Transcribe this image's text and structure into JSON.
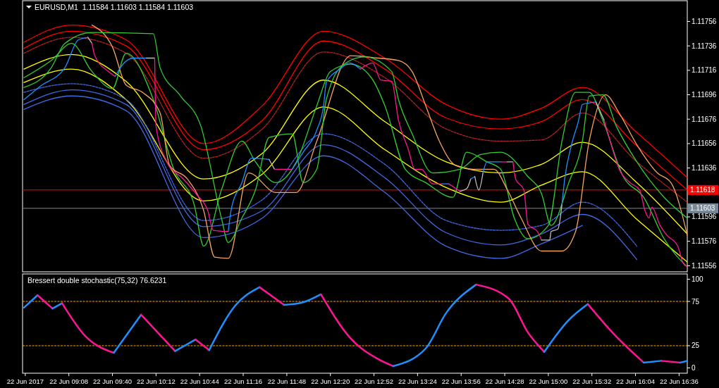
{
  "chart_data": [
    {
      "type": "line",
      "title": "EURUSD,M1  1.11584 1.11603 1.11584 1.11603",
      "xlim": [
        "2017-06-22T08:34",
        "2017-06-22T16:42"
      ],
      "ylim": [
        1.11551,
        1.11773
      ],
      "yticks": [
        1.11556,
        1.11576,
        1.11596,
        1.11636,
        1.11656,
        1.11676,
        1.11696,
        1.11716,
        1.11736,
        1.11756
      ],
      "tick_labels": "y",
      "ref_lines": [
        {
          "axis": "y",
          "value": 1.11618,
          "label": "1.11618",
          "color": "#ff0000"
        },
        {
          "axis": "y",
          "value": 1.11603,
          "label": "1.11603",
          "color": "#778899"
        }
      ],
      "x": [
        "2017-06-22T08:35",
        "2017-06-22T09:10",
        "2017-06-22T09:50",
        "2017-06-22T10:47",
        "2017-06-22T11:30",
        "2017-06-22T12:15",
        "2017-06-22T13:00",
        "2017-06-22T13:45",
        "2017-06-22T14:25",
        "2017-06-22T14:55",
        "2017-06-22T15:25",
        "2017-06-22T16:05",
        "2017-06-22T16:42"
      ],
      "series": [
        {
          "color": "#ff0000",
          "values": [
            1.11739,
            1.11753,
            1.11741,
            1.11656,
            1.11687,
            1.11748,
            1.11726,
            1.11688,
            1.11676,
            1.11685,
            1.11702,
            1.11665,
            1.11628
          ]
        },
        {
          "color": "#ff0000",
          "values": [
            1.11734,
            1.11748,
            1.11736,
            1.11651,
            1.11675,
            1.1174,
            1.11717,
            1.11677,
            1.11668,
            1.11674,
            1.11692,
            1.11654,
            1.11618
          ]
        },
        {
          "color": "#b22222",
          "line_style": "dashed",
          "values": [
            1.1173,
            1.11743,
            1.1173,
            1.11644,
            1.11668,
            1.11731,
            1.1171,
            1.11668,
            1.11658,
            1.11659,
            1.11681,
            1.11641,
            1.11608
          ]
        },
        {
          "color": "#ffff00",
          "values": [
            1.11717,
            1.11729,
            1.11707,
            1.11627,
            1.11648,
            1.11708,
            1.11674,
            1.11641,
            1.11632,
            1.11639,
            1.11657,
            1.11624,
            1.11582
          ]
        },
        {
          "color": "#ffff00",
          "values": [
            1.11706,
            1.11717,
            1.11692,
            1.11609,
            1.11631,
            1.11686,
            1.11651,
            1.1162,
            1.11608,
            1.11622,
            1.11633,
            1.11594,
            1.11559
          ]
        },
        {
          "color": "#4169e1",
          "line_style": "dashed",
          "values": [
            1.11698,
            1.11705,
            1.11692,
            1.11593,
            1.1161,
            1.11664,
            1.11639,
            1.11593,
            1.11585,
            1.11589,
            1.11608,
            1.11572,
            null
          ]
        },
        {
          "color": "#4169e1",
          "values": [
            1.11688,
            1.117,
            1.11688,
            1.11588,
            1.11601,
            1.11655,
            1.11628,
            1.11583,
            1.11573,
            1.11582,
            1.11598,
            1.11561,
            null
          ]
        },
        {
          "color": "#4169e1",
          "values": [
            1.11684,
            1.11695,
            1.11683,
            1.11579,
            1.11595,
            1.11646,
            1.11616,
            1.11572,
            1.11562,
            1.11574,
            1.11589,
            null,
            null
          ]
        },
        {
          "color": "#32cd32",
          "x": [
            "2017-06-22T08:35",
            "2017-06-22T08:55",
            "2017-06-22T09:10",
            "2017-06-22T09:25",
            "2017-06-22T09:40",
            "2017-06-22T09:50",
            "2017-06-22T10:10",
            "2017-06-22T10:25",
            "2017-06-22T10:40",
            "2017-06-22T10:47",
            "2017-06-22T11:00",
            "2017-06-22T11:15",
            "2017-06-22T11:25",
            "2017-06-22T11:40",
            "2017-06-22T11:55",
            "2017-06-22T12:10",
            "2017-06-22T12:20",
            "2017-06-22T12:35",
            "2017-06-22T12:50",
            "2017-06-22T13:00",
            "2017-06-22T13:15",
            "2017-06-22T13:30",
            "2017-06-22T13:50",
            "2017-06-22T14:00",
            "2017-06-22T14:15",
            "2017-06-22T14:25",
            "2017-06-22T14:35",
            "2017-06-22T14:45",
            "2017-06-22T15:00",
            "2017-06-22T15:10",
            "2017-06-22T15:20",
            "2017-06-22T15:30",
            "2017-06-22T15:40",
            "2017-06-22T15:55",
            "2017-06-22T16:10",
            "2017-06-22T16:25",
            "2017-06-22T16:42"
          ],
          "values": [
            1.1171,
            1.11724,
            1.11738,
            1.11715,
            1.11701,
            1.1173,
            1.11692,
            1.11635,
            1.11606,
            1.11572,
            1.11618,
            1.11658,
            1.11641,
            1.11624,
            1.11641,
            1.11687,
            1.11715,
            1.11721,
            1.1171,
            1.11687,
            1.11635,
            1.11624,
            1.11612,
            1.11649,
            1.11641,
            1.11635,
            1.11595,
            1.11578,
            1.11589,
            1.11658,
            1.11698,
            1.11698,
            1.11675,
            1.11629,
            1.11612,
            1.11578,
            1.11555
          ]
        },
        {
          "color": "#f4a460",
          "x": [
            "2017-06-22T09:25",
            "2017-06-22T09:40",
            "2017-06-22T09:50",
            "2017-06-22T10:02",
            "2017-06-22T10:15",
            "2017-06-22T10:22",
            "2017-06-22T10:35",
            "2017-06-22T10:47",
            "2017-06-22T10:55",
            "2017-06-22T11:05",
            "2017-06-22T11:20",
            "2017-06-22T11:40",
            "2017-06-22T11:55",
            "2017-06-22T12:10",
            "2017-06-22T12:35",
            "2017-06-22T12:55",
            "2017-06-22T13:10",
            "2017-06-22T13:20",
            "2017-06-22T13:30",
            "2017-06-22T13:40",
            "2017-06-22T13:52",
            "2017-06-22T14:05",
            "2017-06-22T14:20",
            "2017-06-22T14:30",
            "2017-06-22T14:40",
            "2017-06-22T14:55",
            "2017-06-22T15:10",
            "2017-06-22T15:20",
            "2017-06-22T15:30",
            "2017-06-22T15:42",
            "2017-06-22T15:52",
            "2017-06-22T16:05",
            "2017-06-22T16:20",
            "2017-06-22T16:30",
            "2017-06-22T16:42"
          ],
          "values": [
            1.11753,
            1.11735,
            1.11704,
            1.11698,
            1.11681,
            1.11638,
            1.11627,
            1.11601,
            1.11563,
            1.11562,
            1.11632,
            1.11616,
            1.11616,
            1.11658,
            1.11728,
            1.11726,
            1.11724,
            1.11715,
            1.11687,
            1.11658,
            1.11638,
            1.11635,
            1.11635,
            1.11618,
            1.11595,
            1.11568,
            1.11568,
            1.11584,
            1.11658,
            1.11696,
            1.11681,
            1.11655,
            1.11632,
            1.11624,
            1.11581
          ]
        },
        {
          "color": "#32cd32",
          "x": [
            "2017-06-22T08:35",
            "2017-06-22T08:55",
            "2017-06-22T09:05",
            "2017-06-22T09:25",
            "2017-06-22T10:10",
            "2017-06-22T10:15",
            "2017-06-22T10:30",
            "2017-06-22T10:45",
            "2017-06-22T11:00",
            "2017-06-22T11:05",
            "2017-06-22T11:15",
            "2017-06-22T11:25",
            "2017-06-22T11:35",
            "2017-06-22T11:52",
            "2017-06-22T12:00",
            "2017-06-22T12:10",
            "2017-06-22T12:17",
            "2017-06-22T12:30",
            "2017-06-22T12:45",
            "2017-06-22T13:05",
            "2017-06-22T13:10",
            "2017-06-22T13:20",
            "2017-06-22T13:35",
            "2017-06-22T13:55",
            "2017-06-22T14:10",
            "2017-06-22T14:25",
            "2017-06-22T14:45",
            "2017-06-22T14:55",
            "2017-06-22T15:02",
            "2017-06-22T15:15",
            "2017-06-22T15:25",
            "2017-06-22T15:30",
            "2017-06-22T15:40",
            "2017-06-22T15:50",
            "2017-06-22T16:05",
            "2017-06-22T16:25",
            "2017-06-22T16:42"
          ],
          "values": [
            1.11702,
            1.11718,
            1.11738,
            1.11747,
            1.11746,
            1.11718,
            1.11695,
            1.1167,
            1.11595,
            1.11575,
            1.11595,
            1.11618,
            1.11661,
            1.11664,
            1.11624,
            1.11635,
            1.11692,
            1.11721,
            1.11727,
            1.11715,
            1.11692,
            1.11664,
            1.11632,
            1.11635,
            1.11647,
            1.11649,
            1.11629,
            1.11615,
            1.11589,
            1.11624,
            1.11658,
            1.11695,
            1.11696,
            1.1167,
            1.11641,
            1.11612,
            1.11595
          ]
        },
        {
          "color": "#1e90ff",
          "x": [
            "2017-06-22T08:35",
            "2017-06-22T08:47",
            "2017-06-22T09:05",
            "2017-06-22T09:15",
            "2017-06-22T09:22"
          ],
          "values": [
            1.11692,
            1.11703,
            1.11718,
            1.11741,
            1.11743
          ]
        },
        {
          "color": "#c0c0c0",
          "x": [
            "2017-06-22T09:22",
            "2017-06-22T09:25"
          ],
          "values": [
            1.11743,
            1.11738
          ]
        },
        {
          "color": "#ff1493",
          "x": [
            "2017-06-22T09:25",
            "2017-06-22T09:27",
            "2017-06-22T09:37",
            "2017-06-22T09:42"
          ],
          "values": [
            1.11738,
            1.11728,
            1.11715,
            1.11711
          ]
        },
        {
          "color": "#1e90ff",
          "x": [
            "2017-06-22T09:42",
            "2017-06-22T09:47",
            "2017-06-22T09:55",
            "2017-06-22T10:05"
          ],
          "values": [
            1.11711,
            1.1172,
            1.11726,
            1.11726
          ]
        },
        {
          "color": "#c0c0c0",
          "x": [
            "2017-06-22T10:05",
            "2017-06-22T10:11"
          ],
          "values": [
            1.11726,
            1.11726
          ]
        },
        {
          "color": "#ff1493",
          "x": [
            "2017-06-22T10:11",
            "2017-06-22T10:12",
            "2017-06-22T10:20",
            "2017-06-22T10:32",
            "2017-06-22T10:42",
            "2017-06-22T10:50",
            "2017-06-22T10:54",
            "2017-06-22T11:05"
          ],
          "values": [
            1.11726,
            1.1167,
            1.11641,
            1.11627,
            1.11614,
            1.11601,
            1.11585,
            1.11584
          ]
        },
        {
          "color": "#1e90ff",
          "x": [
            "2017-06-22T11:05",
            "2017-06-22T11:07",
            "2017-06-22T11:15",
            "2017-06-22T11:22",
            "2017-06-22T11:35"
          ],
          "values": [
            1.11584,
            1.11601,
            1.11624,
            1.11644,
            1.11643
          ]
        },
        {
          "color": "#c0c0c0",
          "x": [
            "2017-06-22T11:35",
            "2017-06-22T11:39"
          ],
          "values": [
            1.11643,
            1.11635
          ]
        },
        {
          "color": "#ff1493",
          "x": [
            "2017-06-22T11:39",
            "2017-06-22T11:52"
          ],
          "values": [
            1.11635,
            1.11635
          ]
        },
        {
          "color": "#1e90ff",
          "x": [
            "2017-06-22T11:52",
            "2017-06-22T12:00",
            "2017-06-22T12:10",
            "2017-06-22T12:15",
            "2017-06-22T12:17",
            "2017-06-22T12:27",
            "2017-06-22T12:34",
            "2017-06-22T12:42"
          ],
          "values": [
            1.11635,
            1.11649,
            1.11667,
            1.11687,
            1.11706,
            1.11717,
            1.11722,
            1.11717
          ]
        },
        {
          "color": "#ff1493",
          "x": [
            "2017-06-22T12:42",
            "2017-06-22T12:51",
            "2017-06-22T12:57",
            "2017-06-22T13:05",
            "2017-06-22T13:10",
            "2017-06-22T13:17",
            "2017-06-22T13:22",
            "2017-06-22T13:27",
            "2017-06-22T13:35",
            "2017-06-22T13:42"
          ],
          "values": [
            1.11717,
            1.11722,
            1.11708,
            1.11707,
            1.11675,
            1.11652,
            1.11635,
            1.11635,
            1.11623,
            1.11623
          ]
        },
        {
          "color": "#1e90ff",
          "x": [
            "2017-06-22T13:42",
            "2017-06-22T13:47"
          ],
          "values": [
            1.11623,
            1.11623
          ]
        },
        {
          "color": "#ff1493",
          "x": [
            "2017-06-22T13:47",
            "2017-06-22T13:55"
          ],
          "values": [
            1.11623,
            1.11617
          ]
        },
        {
          "color": "#c0c0c0",
          "x": [
            "2017-06-22T13:55",
            "2017-06-22T14:00",
            "2017-06-22T14:03"
          ],
          "values": [
            1.11617,
            1.11619,
            1.11627
          ]
        },
        {
          "color": "#1e90ff",
          "x": [
            "2017-06-22T14:03",
            "2017-06-22T14:06"
          ],
          "values": [
            1.11627,
            1.11629
          ]
        },
        {
          "color": "#c0c0c0",
          "x": [
            "2017-06-22T14:06",
            "2017-06-22T14:09",
            "2017-06-22T14:12"
          ],
          "values": [
            1.11629,
            1.11618,
            1.11632
          ]
        },
        {
          "color": "#1e90ff",
          "x": [
            "2017-06-22T14:12",
            "2017-06-22T14:15",
            "2017-06-22T14:25"
          ],
          "values": [
            1.11632,
            1.11641,
            1.11641
          ]
        },
        {
          "color": "#ff1493",
          "x": [
            "2017-06-22T14:25",
            "2017-06-22T14:30"
          ],
          "values": [
            1.11641,
            1.11641
          ]
        },
        {
          "color": "#c0c0c0",
          "x": [
            "2017-06-22T14:30",
            "2017-06-22T14:34"
          ],
          "values": [
            1.11641,
            1.11641
          ]
        },
        {
          "color": "#ff1493",
          "x": [
            "2017-06-22T14:34",
            "2017-06-22T14:36",
            "2017-06-22T14:42",
            "2017-06-22T14:45",
            "2017-06-22T14:52",
            "2017-06-22T14:55"
          ],
          "values": [
            1.11641,
            1.11627,
            1.11618,
            1.1159,
            1.11584,
            1.11577
          ]
        },
        {
          "color": "#c0c0c0",
          "x": [
            "2017-06-22T14:55",
            "2017-06-22T15:01",
            "2017-06-22T15:02",
            "2017-06-22T15:07",
            "2017-06-22T15:10"
          ],
          "values": [
            1.11577,
            1.11577,
            1.11584,
            1.11586,
            1.11606
          ]
        },
        {
          "color": "#1e90ff",
          "x": [
            "2017-06-22T15:10",
            "2017-06-22T15:12",
            "2017-06-22T15:17",
            "2017-06-22T15:22",
            "2017-06-22T15:25",
            "2017-06-22T15:35"
          ],
          "values": [
            1.11606,
            1.11627,
            1.11655,
            1.11674,
            1.11688,
            1.1169
          ]
        },
        {
          "color": "#c0c0c0",
          "x": [
            "2017-06-22T15:35",
            "2017-06-22T15:41"
          ],
          "values": [
            1.1169,
            1.11675
          ]
        },
        {
          "color": "#ff1493",
          "x": [
            "2017-06-22T15:41",
            "2017-06-22T15:47",
            "2017-06-22T15:52",
            "2017-06-22T16:00",
            "2017-06-22T16:07",
            "2017-06-22T16:11",
            "2017-06-22T16:14",
            "2017-06-22T16:16",
            "2017-06-22T16:22",
            "2017-06-22T16:27",
            "2017-06-22T16:35",
            "2017-06-22T16:39",
            "2017-06-22T16:42"
          ],
          "values": [
            1.11675,
            1.11652,
            1.11635,
            1.11624,
            1.11618,
            1.11601,
            1.11595,
            1.11604,
            1.11589,
            1.11581,
            1.11572,
            1.11558,
            1.11555
          ]
        }
      ]
    },
    {
      "type": "line",
      "title": "Bressert double stochastic(75,32) 76.6231",
      "xlim": [
        "2017-06-22T08:34",
        "2017-06-22T16:42"
      ],
      "ylim": [
        -6,
        106
      ],
      "yticks": [
        0,
        25,
        75,
        100
      ],
      "xticks": [
        {
          "value": "2017-06-22T08:36",
          "label": "22 Jun 2017"
        },
        {
          "value": "2017-06-22T09:08",
          "label": "22 Jun 09:08"
        },
        {
          "value": "2017-06-22T09:40",
          "label": "22 Jun 09:40"
        },
        {
          "value": "2017-06-22T10:12",
          "label": "22 Jun 10:12"
        },
        {
          "value": "2017-06-22T10:44",
          "label": "22 Jun 10:44"
        },
        {
          "value": "2017-06-22T11:16",
          "label": "22 Jun 11:16"
        },
        {
          "value": "2017-06-22T11:48",
          "label": "22 Jun 11:48"
        },
        {
          "value": "2017-06-22T12:20",
          "label": "22 Jun 12:20"
        },
        {
          "value": "2017-06-22T12:52",
          "label": "22 Jun 12:52"
        },
        {
          "value": "2017-06-22T13:24",
          "label": "22 Jun 13:24"
        },
        {
          "value": "2017-06-22T13:56",
          "label": "22 Jun 13:56"
        },
        {
          "value": "2017-06-22T14:28",
          "label": "22 Jun 14:28"
        },
        {
          "value": "2017-06-22T15:00",
          "label": "22 Jun 15:00"
        },
        {
          "value": "2017-06-22T15:32",
          "label": "22 Jun 15:32"
        },
        {
          "value": "2017-06-22T16:04",
          "label": "22 Jun 16:04"
        },
        {
          "value": "2017-06-22T16:36",
          "label": "22 Jun 16:36"
        }
      ],
      "ref_lines": [
        {
          "axis": "y",
          "value": 75,
          "color": "#ffa500",
          "line_style": "dashed"
        },
        {
          "axis": "y",
          "value": 25,
          "color": "#ffa500",
          "line_style": "dashed"
        }
      ],
      "series": [
        {
          "color": "#1e90ff",
          "x": [
            "2017-06-22T08:35",
            "2017-06-22T08:45"
          ],
          "values": [
            68,
            82
          ]
        },
        {
          "color": "#ff1493",
          "x": [
            "2017-06-22T08:45",
            "2017-06-22T08:56"
          ],
          "values": [
            82,
            67
          ]
        },
        {
          "color": "#1e90ff",
          "x": [
            "2017-06-22T08:56",
            "2017-06-22T09:03"
          ],
          "values": [
            67,
            73
          ]
        },
        {
          "color": "#ff1493",
          "x": [
            "2017-06-22T09:03",
            "2017-06-22T09:20",
            "2017-06-22T09:41"
          ],
          "values": [
            73,
            36,
            17
          ]
        },
        {
          "color": "#1e90ff",
          "x": [
            "2017-06-22T09:41",
            "2017-06-22T10:01"
          ],
          "values": [
            17,
            60
          ]
        },
        {
          "color": "#ff1493",
          "x": [
            "2017-06-22T10:01",
            "2017-06-22T10:26"
          ],
          "values": [
            60,
            19
          ]
        },
        {
          "color": "#1e90ff",
          "x": [
            "2017-06-22T10:26",
            "2017-06-22T10:41"
          ],
          "values": [
            19,
            32
          ]
        },
        {
          "color": "#ff1493",
          "x": [
            "2017-06-22T10:41",
            "2017-06-22T10:51"
          ],
          "values": [
            32,
            20
          ]
        },
        {
          "color": "#1e90ff",
          "x": [
            "2017-06-22T10:51",
            "2017-06-22T11:10",
            "2017-06-22T11:28"
          ],
          "values": [
            20,
            70,
            91
          ]
        },
        {
          "color": "#ff1493",
          "x": [
            "2017-06-22T11:28",
            "2017-06-22T11:46"
          ],
          "values": [
            91,
            71
          ]
        },
        {
          "color": "#1e90ff",
          "x": [
            "2017-06-22T11:46",
            "2017-06-22T12:00",
            "2017-06-22T12:13"
          ],
          "values": [
            71,
            74,
            83
          ]
        },
        {
          "color": "#ff1493",
          "x": [
            "2017-06-22T12:13",
            "2017-06-22T12:35",
            "2017-06-22T12:55",
            "2017-06-22T13:06"
          ],
          "values": [
            83,
            33,
            10,
            2
          ]
        },
        {
          "color": "#1e90ff",
          "x": [
            "2017-06-22T13:06",
            "2017-06-22T13:30",
            "2017-06-22T13:45",
            "2017-06-22T14:07"
          ],
          "values": [
            2,
            22,
            62,
            94
          ]
        },
        {
          "color": "#ff1493",
          "x": [
            "2017-06-22T14:07",
            "2017-06-22T14:31",
            "2017-06-22T14:45",
            "2017-06-22T14:57"
          ],
          "values": [
            94,
            78,
            40,
            18
          ]
        },
        {
          "color": "#1e90ff",
          "x": [
            "2017-06-22T14:57",
            "2017-06-22T15:15",
            "2017-06-22T15:29"
          ],
          "values": [
            18,
            54,
            72
          ]
        },
        {
          "color": "#ff1493",
          "x": [
            "2017-06-22T15:29",
            "2017-06-22T15:47",
            "2017-06-22T16:10"
          ],
          "values": [
            72,
            40,
            6
          ]
        },
        {
          "color": "#1e90ff",
          "x": [
            "2017-06-22T16:10",
            "2017-06-22T16:23"
          ],
          "values": [
            6,
            8
          ]
        },
        {
          "color": "#ff1493",
          "x": [
            "2017-06-22T16:23",
            "2017-06-22T16:37"
          ],
          "values": [
            8,
            6
          ]
        },
        {
          "color": "#1e90ff",
          "x": [
            "2017-06-22T16:37",
            "2017-06-22T16:42"
          ],
          "values": [
            6,
            8
          ]
        }
      ]
    }
  ]
}
